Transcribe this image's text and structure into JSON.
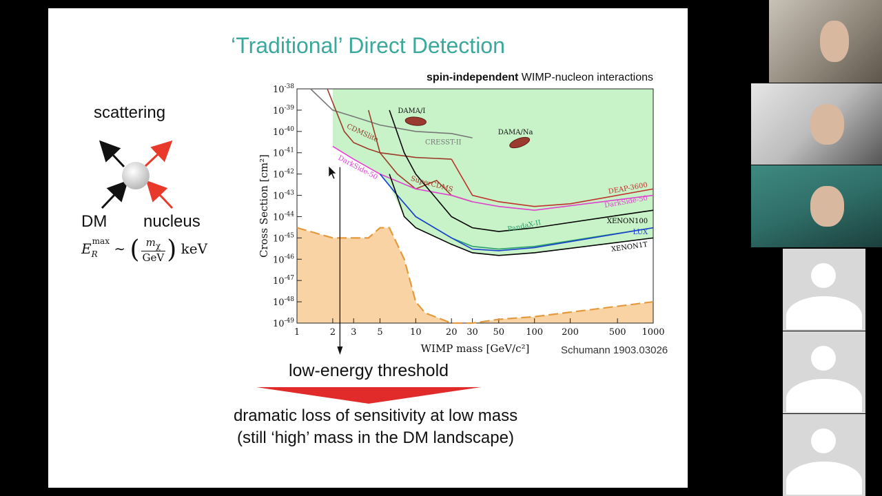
{
  "slide": {
    "title": "‘Traditional’ Direct Detection",
    "diagram": {
      "scattering_label": "scattering",
      "dm_label": "DM",
      "nucleus_label": "nucleus"
    },
    "plot_header_bold": "spin-independent",
    "plot_header_rest": " WIMP-nucleon interactions",
    "citation": "Schumann 1903.03026",
    "threshold_label": "low-energy threshold",
    "bottom_line1": "dramatic loss of sensitivity at low mass",
    "bottom_line2": "(still ‘high’ mass in the DM landscape)"
  },
  "chart_data": {
    "type": "line",
    "xlabel": "WIMP mass [GeV/c²]",
    "ylabel": "Cross Section [cm²]",
    "xscale": "log",
    "yscale": "log",
    "xlim": [
      1,
      1000
    ],
    "ylim": [
      1e-49,
      1e-38
    ],
    "x_ticks": [
      "1",
      "2",
      "3",
      "5",
      "10",
      "20",
      "30",
      "50",
      "100",
      "200",
      "500",
      "1000"
    ],
    "y_ticks": [
      -38,
      -39,
      -40,
      -41,
      -42,
      -43,
      -44,
      -45,
      -46,
      -47,
      -48,
      -49
    ],
    "grid": false,
    "excluded_region_color": "#c8f2c8",
    "neutrino_floor_color": "#f9d3a3",
    "series": [
      {
        "name": "DAMA/I",
        "kind": "contour",
        "color": "#8b3a2e",
        "x": [
          8,
          10,
          12
        ],
        "y": [
          2e-40,
          3e-40,
          2e-40
        ]
      },
      {
        "name": "DAMA/Na",
        "kind": "contour",
        "color": "#8b3a2e",
        "x": [
          60,
          75,
          90
        ],
        "y": [
          1e-41,
          3e-41,
          6e-41
        ]
      },
      {
        "name": "CRESST-II",
        "color": "#777777",
        "x": [
          1.3,
          2,
          3,
          5,
          10,
          20,
          30
        ],
        "y": [
          1e-38,
          1e-39,
          5e-40,
          2e-40,
          1e-40,
          8e-41,
          5e-41
        ]
      },
      {
        "name": "CDMSlite",
        "color": "#9b3a26",
        "x": [
          1.8,
          2.5,
          3,
          4,
          5,
          10,
          20
        ],
        "y": [
          1e-38,
          1e-40,
          3e-41,
          1.5e-41,
          1e-41,
          6e-42,
          5e-42
        ]
      },
      {
        "name": "SuperCDMS",
        "color": "#9b3a26",
        "x": [
          4,
          5,
          7,
          10,
          15,
          20,
          30
        ],
        "y": [
          1e-39,
          1e-41,
          1e-42,
          2e-43,
          5e-43,
          1e-43,
          5e-44
        ]
      },
      {
        "name": "DarkSide-50",
        "color": "#e040d0",
        "x": [
          2,
          3,
          5,
          10,
          20,
          30,
          50,
          100,
          1000
        ],
        "y": [
          2e-41,
          5e-42,
          1e-42,
          2e-43,
          1e-43,
          5e-44,
          3e-44,
          2e-44,
          1e-43
        ]
      },
      {
        "name": "DEAP-3600",
        "color": "#c0302a",
        "x": [
          20,
          30,
          50,
          100,
          200,
          1000
        ],
        "y": [
          5e-42,
          1e-43,
          5e-44,
          3e-44,
          4e-44,
          2e-43
        ]
      },
      {
        "name": "XENON100",
        "color": "#000000",
        "x": [
          6,
          8,
          10,
          20,
          30,
          50,
          100,
          1000
        ],
        "y": [
          1e-39,
          1e-41,
          1e-42,
          1e-44,
          3e-45,
          2e-45,
          3e-45,
          2e-44
        ]
      },
      {
        "name": "PandaX-II",
        "color": "#2aa06a",
        "x": [
          5,
          7,
          10,
          20,
          30,
          50,
          100,
          1000
        ],
        "y": [
          1e-42,
          1e-43,
          1e-44,
          1e-45,
          4e-46,
          3e-46,
          4e-46,
          3e-45
        ]
      },
      {
        "name": "LUX",
        "color": "#1a3fcf",
        "x": [
          5,
          7,
          10,
          20,
          30,
          50,
          100,
          1000
        ],
        "y": [
          1e-42,
          1e-43,
          1e-44,
          1e-45,
          3e-46,
          2.5e-46,
          3.5e-46,
          3e-45
        ]
      },
      {
        "name": "XENON1T",
        "color": "#000000",
        "x": [
          6,
          8,
          10,
          20,
          30,
          50,
          100,
          1000
        ],
        "y": [
          1e-42,
          1e-44,
          3e-45,
          5e-46,
          2e-46,
          1.5e-46,
          2e-46,
          1e-45
        ]
      },
      {
        "name": "neutrino floor",
        "color": "#e39a3c",
        "dashed": true,
        "x": [
          1,
          2,
          3,
          4,
          5,
          6,
          8,
          10,
          12,
          20,
          30,
          50,
          100,
          1000
        ],
        "y": [
          3e-45,
          1e-45,
          1e-45,
          1e-45,
          3e-45,
          3e-45,
          1e-46,
          1e-48,
          3e-49,
          1e-49,
          1e-49,
          1.5e-49,
          2e-49,
          1e-48
        ]
      }
    ]
  },
  "participants": [
    "participant-1",
    "participant-2",
    "participant-3",
    "participant-4",
    "participant-5",
    "participant-6"
  ]
}
